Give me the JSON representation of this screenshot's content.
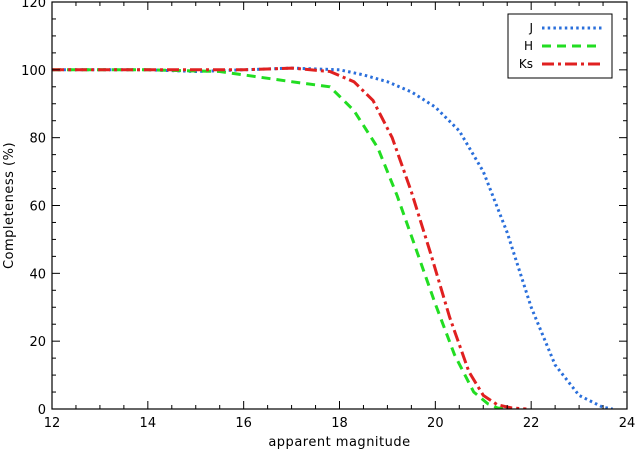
{
  "chart_data": {
    "type": "line",
    "xlabel": "apparent magnitude",
    "ylabel": "Completeness (%)",
    "xlim": [
      12,
      24
    ],
    "ylim": [
      0,
      120
    ],
    "xticks": [
      "12",
      "14",
      "16",
      "18",
      "20",
      "22",
      "24"
    ],
    "yticks": [
      "0",
      "20",
      "40",
      "60",
      "80",
      "100",
      "120"
    ],
    "legend_position": "top-right",
    "grid": false,
    "series": [
      {
        "name": "J",
        "color": "#2a6fdb",
        "style": "dotted",
        "x": [
          12.0,
          14.0,
          15.0,
          16.0,
          17.0,
          18.0,
          18.5,
          19.0,
          19.5,
          20.0,
          20.5,
          21.0,
          21.5,
          22.0,
          22.5,
          23.0,
          23.5,
          23.7
        ],
        "y": [
          100,
          100,
          99.5,
          100,
          100.5,
          100,
          98.5,
          96.5,
          93.5,
          89,
          82,
          70,
          52,
          30,
          13,
          4,
          0.5,
          0
        ]
      },
      {
        "name": "H",
        "color": "#22dd22",
        "style": "dashed",
        "x": [
          12.0,
          14.0,
          15.5,
          16.0,
          17.0,
          17.8,
          18.3,
          18.8,
          19.2,
          19.6,
          20.0,
          20.4,
          20.8,
          21.1,
          21.3,
          21.5
        ],
        "y": [
          100,
          100,
          99.5,
          98.5,
          96.5,
          95,
          88,
          77,
          63,
          47,
          31,
          16,
          5,
          1.5,
          0.3,
          0
        ]
      },
      {
        "name": "Ks",
        "color": "#e02020",
        "style": "dashdot",
        "x": [
          12.0,
          14.0,
          16.0,
          17.0,
          17.8,
          18.3,
          18.7,
          19.1,
          19.5,
          19.9,
          20.3,
          20.7,
          21.0,
          21.3,
          21.6,
          21.9
        ],
        "y": [
          100,
          100,
          100,
          100.5,
          99.5,
          96.5,
          91,
          80,
          64,
          46,
          27,
          11,
          4,
          1.2,
          0.3,
          0
        ]
      }
    ]
  }
}
